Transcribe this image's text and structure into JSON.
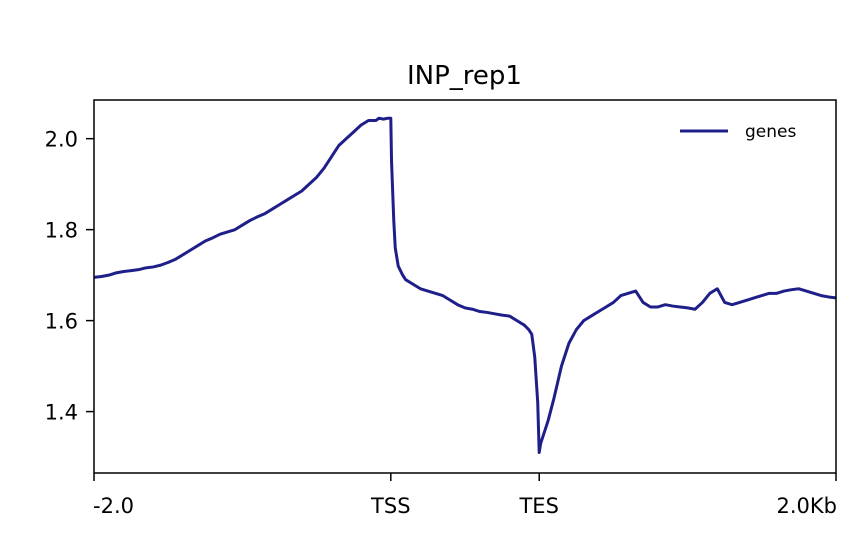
{
  "chart_data": {
    "type": "line",
    "title": "INP_rep1",
    "xlabel": "",
    "ylabel": "",
    "x_ticks": [
      "-2.0",
      "TSS",
      "TES",
      "2.0Kb"
    ],
    "x_tick_positions": [
      0,
      2000,
      3000,
      5000
    ],
    "xlim": [
      0,
      5000
    ],
    "y_ticks": [
      1.4,
      1.6,
      1.8,
      2.0
    ],
    "y_tick_labels": [
      "1.4",
      "1.6",
      "1.8",
      "2.0"
    ],
    "ylim": [
      1.265,
      2.085
    ],
    "grid": false,
    "legend_position": "top-right",
    "series": [
      {
        "name": "genes",
        "color": "#1f1f8a",
        "x": [
          0,
          50,
          100,
          150,
          200,
          250,
          300,
          350,
          400,
          450,
          500,
          550,
          600,
          650,
          700,
          750,
          800,
          850,
          900,
          950,
          1000,
          1050,
          1100,
          1150,
          1200,
          1250,
          1300,
          1350,
          1400,
          1450,
          1500,
          1550,
          1600,
          1650,
          1700,
          1750,
          1800,
          1850,
          1900,
          1920,
          1950,
          1980,
          2000,
          2005,
          2020,
          2030,
          2050,
          2080,
          2100,
          2150,
          2200,
          2250,
          2300,
          2350,
          2400,
          2450,
          2500,
          2550,
          2600,
          2650,
          2700,
          2750,
          2800,
          2850,
          2900,
          2930,
          2950,
          2970,
          2990,
          3000,
          3010,
          3030,
          3060,
          3100,
          3150,
          3200,
          3250,
          3300,
          3350,
          3400,
          3450,
          3500,
          3550,
          3600,
          3650,
          3700,
          3750,
          3800,
          3850,
          3900,
          3950,
          4000,
          4050,
          4100,
          4150,
          4200,
          4250,
          4300,
          4350,
          4400,
          4450,
          4500,
          4550,
          4600,
          4650,
          4700,
          4750,
          4800,
          4850,
          4900,
          4950,
          5000
        ],
        "y": [
          1.695,
          1.697,
          1.7,
          1.705,
          1.708,
          1.71,
          1.712,
          1.716,
          1.718,
          1.722,
          1.728,
          1.735,
          1.745,
          1.755,
          1.765,
          1.775,
          1.782,
          1.79,
          1.795,
          1.8,
          1.81,
          1.82,
          1.828,
          1.835,
          1.845,
          1.855,
          1.865,
          1.875,
          1.885,
          1.9,
          1.915,
          1.935,
          1.96,
          1.985,
          2.0,
          2.015,
          2.03,
          2.04,
          2.04,
          2.045,
          2.043,
          2.045,
          2.045,
          1.95,
          1.82,
          1.76,
          1.72,
          1.7,
          1.69,
          1.68,
          1.67,
          1.665,
          1.66,
          1.655,
          1.645,
          1.635,
          1.628,
          1.625,
          1.62,
          1.618,
          1.615,
          1.612,
          1.61,
          1.6,
          1.59,
          1.58,
          1.57,
          1.52,
          1.42,
          1.31,
          1.33,
          1.35,
          1.38,
          1.43,
          1.5,
          1.55,
          1.58,
          1.6,
          1.61,
          1.62,
          1.63,
          1.64,
          1.655,
          1.66,
          1.665,
          1.64,
          1.63,
          1.63,
          1.635,
          1.632,
          1.63,
          1.628,
          1.625,
          1.64,
          1.66,
          1.67,
          1.64,
          1.635,
          1.64,
          1.645,
          1.65,
          1.655,
          1.66,
          1.66,
          1.665,
          1.668,
          1.67,
          1.665,
          1.66,
          1.655,
          1.652,
          1.65
        ]
      }
    ]
  }
}
